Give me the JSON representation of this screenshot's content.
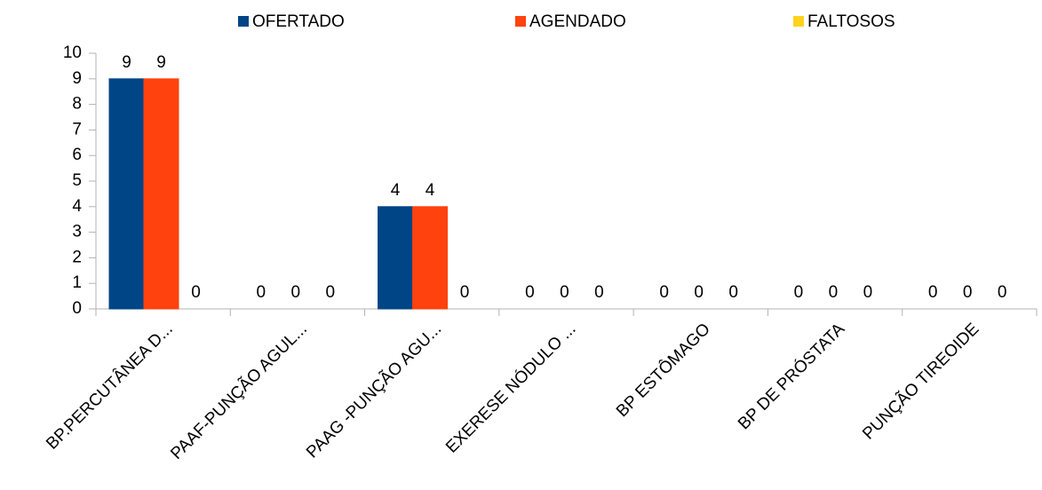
{
  "chart_data": {
    "type": "bar",
    "categories": [
      "BP.PERCUTÂNEA D...",
      "PAAF-PUNÇÃO AGUL...",
      "PAAG -PUNÇÃO AGU...",
      "EXERESE NÓDULO ...",
      "BP ESTÔMAGO",
      "BP DE PRÓSTATA",
      "PUNÇÃO TIREOIDE"
    ],
    "series": [
      {
        "name": "OFERTADO",
        "color": "#004586",
        "values": [
          9,
          0,
          4,
          0,
          0,
          0,
          0
        ]
      },
      {
        "name": "AGENDADO",
        "color": "#ff420e",
        "values": [
          9,
          0,
          4,
          0,
          0,
          0,
          0
        ]
      },
      {
        "name": "FALTOSOS",
        "color": "#ffd320",
        "values": [
          0,
          0,
          0,
          0,
          0,
          0,
          0
        ]
      }
    ],
    "ylim": [
      0,
      10
    ],
    "yticks": [
      0,
      1,
      2,
      3,
      4,
      5,
      6,
      7,
      8,
      9,
      10
    ],
    "grid": false,
    "legend": "top"
  }
}
